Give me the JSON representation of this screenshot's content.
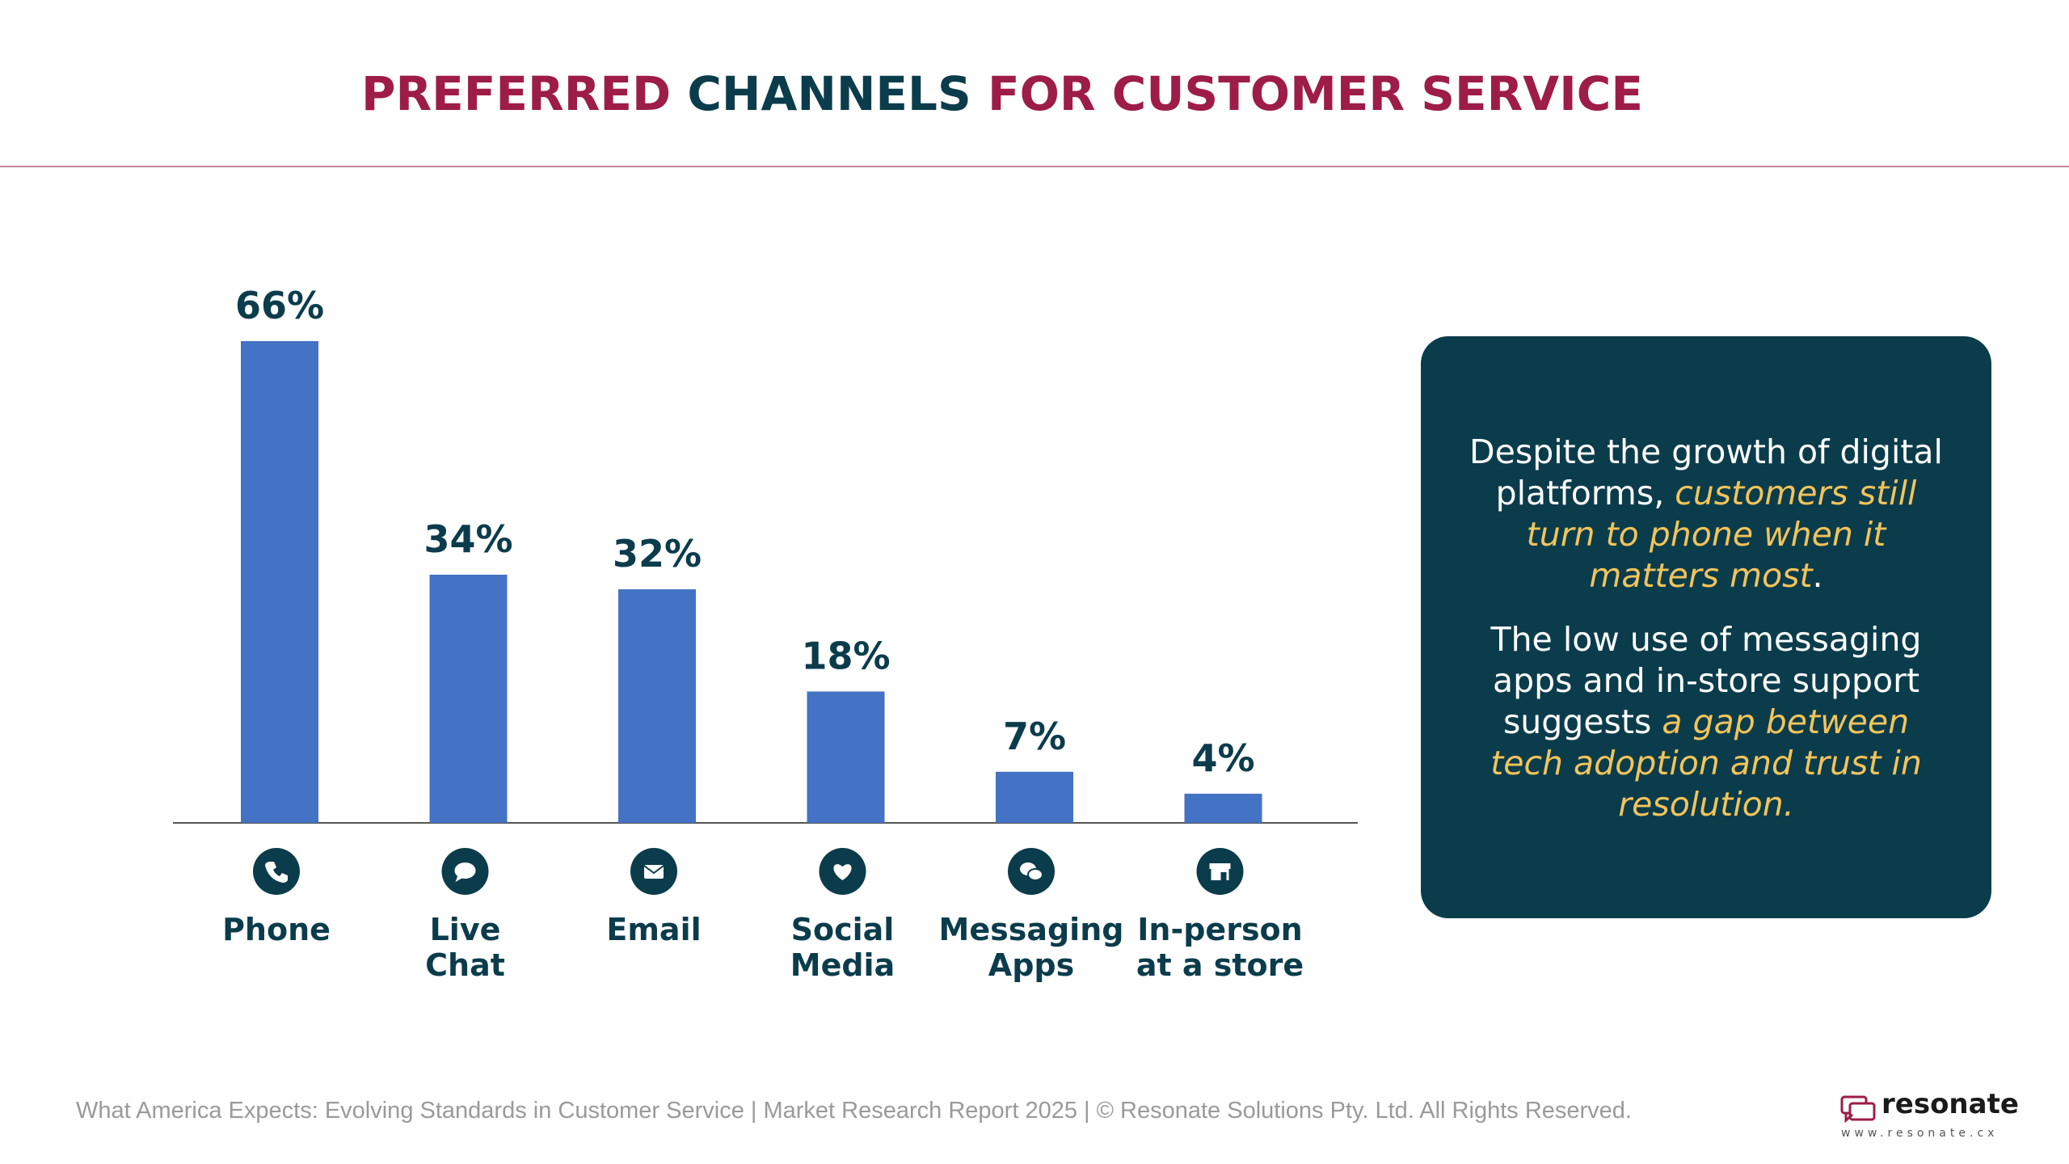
{
  "title": {
    "part1": "PREFERRED",
    "part2": "CHANNELS",
    "part3": "FOR CUSTOMER SERVICE"
  },
  "chart_data": {
    "type": "bar",
    "categories": [
      "Phone",
      "Live Chat",
      "Email",
      "Social Media",
      "Messaging Apps",
      "In-person at a store"
    ],
    "category_lines": [
      [
        "Phone"
      ],
      [
        "Live",
        "Chat"
      ],
      [
        "Email"
      ],
      [
        "Social",
        "Media"
      ],
      [
        "Messaging",
        "Apps"
      ],
      [
        "In-person",
        "at a store"
      ]
    ],
    "icons": [
      "phone-icon",
      "chat-icon",
      "email-icon",
      "heart-icon",
      "messaging-icon",
      "store-icon"
    ],
    "values": [
      66,
      34,
      32,
      18,
      7,
      4
    ],
    "value_labels": [
      "66%",
      "34%",
      "32%",
      "18%",
      "7%",
      "4%"
    ],
    "ylim": [
      0,
      66
    ],
    "grid": false,
    "xlabel": "",
    "ylabel": "",
    "bar_color": "#4472c4",
    "label_color": "#0b3c4c"
  },
  "insight": {
    "p1_plain": "Despite the growth of digital platforms, ",
    "p1_highlight": "customers still turn to phone when it matters most",
    "p1_end": ".",
    "p2_plain": "The low use of messaging apps and in-store support suggests ",
    "p2_highlight": "a gap between tech adoption and trust in resolution."
  },
  "footer": {
    "text": "What America Expects: Evolving Standards in Customer Service | Market Research Report 2025 | © Resonate Solutions Pty. Ltd. All Rights Reserved."
  },
  "logo": {
    "name": "resonate",
    "url": "www.resonate.cx"
  },
  "colors": {
    "title_red": "#9e1c48",
    "title_teal": "#0b3c4c",
    "panel_bg": "#0b3c4c",
    "highlight": "#f2c45a"
  }
}
